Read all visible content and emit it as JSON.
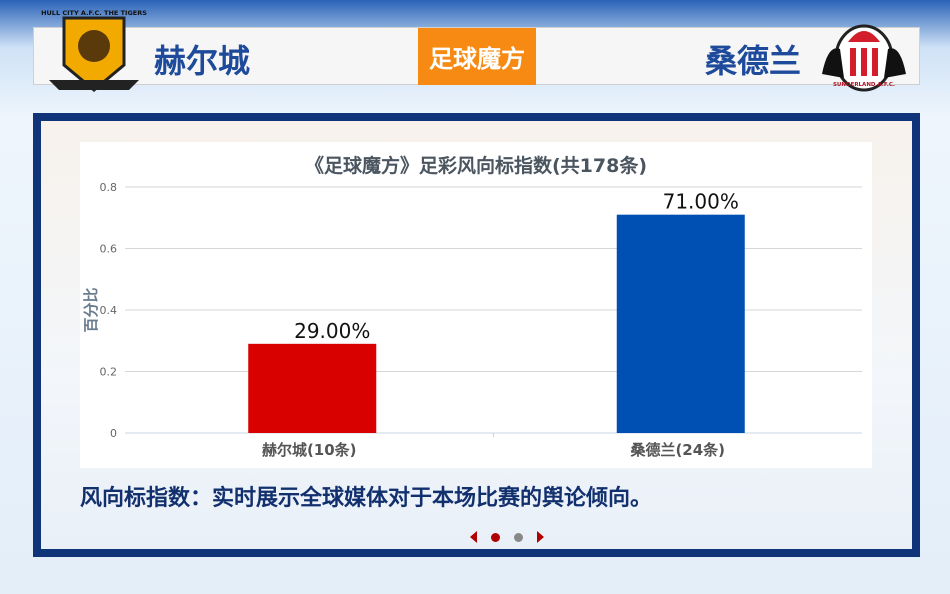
{
  "header": {
    "home_team": "赫尔城",
    "away_team": "桑德兰",
    "brand": "足球魔方",
    "home_crest_text": "HULL CITY A.F.C. THE TIGERS",
    "away_crest_text": "SUNDERLAND A.F.C."
  },
  "description": "风向标指数：实时展示全球媒体对于本场比赛的舆论倾向。",
  "pager": {
    "pages": 2,
    "current": 1
  },
  "chart_data": {
    "type": "bar",
    "title": "《足球魔方》足彩风向标指数(共178条)",
    "ylabel": "百分比",
    "xlabel": "",
    "categories": [
      "赫尔城(10条)",
      "桑德兰(24条)"
    ],
    "values": [
      0.29,
      0.71
    ],
    "data_labels": [
      "29.00%",
      "71.00%"
    ],
    "colors": [
      "#d90000",
      "#0050b4"
    ],
    "ylim": [
      0,
      0.8
    ],
    "yticks": [
      "0",
      "0.2",
      "0.4",
      "0.6",
      "0.8"
    ],
    "grid": true
  }
}
